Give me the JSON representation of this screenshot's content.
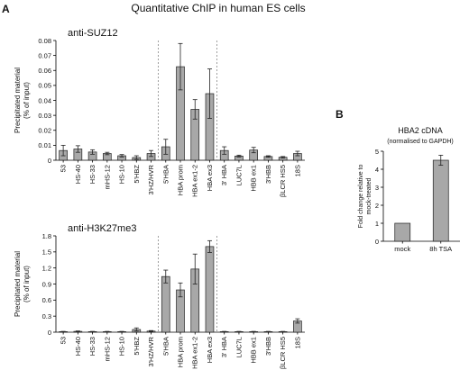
{
  "figure": {
    "title": "Quantitative ChIP in human ES cells",
    "panel_a_label": "A",
    "panel_b_label": "B"
  },
  "chart_data": [
    {
      "type": "bar",
      "title": "anti-SUZ12",
      "ylabel": [
        "Precipitated material",
        "(% of input)"
      ],
      "ylim": [
        0,
        0.08
      ],
      "yticks": [
        "0",
        "0.01",
        "0.02",
        "0.03",
        "0.04",
        "0.05",
        "0.06",
        "0.07",
        "0.08"
      ],
      "categories": [
        "53",
        "HS-40",
        "HS-33",
        "mHS-12",
        "HS-10",
        "5'HBZ",
        "3'HZ/HVR",
        "5'HBA",
        "HBA prom",
        "HBA ex1-2",
        "HBA ex3",
        "3' HBA",
        "LUC7L",
        "HBB ex1",
        "3'HBB",
        "βLCR HS5",
        "18S"
      ],
      "values": [
        0.0065,
        0.0075,
        0.0055,
        0.0045,
        0.003,
        0.0018,
        0.0045,
        0.009,
        0.0625,
        0.034,
        0.0445,
        0.0065,
        0.0028,
        0.0068,
        0.0025,
        0.002,
        0.0045
      ],
      "errors": [
        0.0035,
        0.0022,
        0.0015,
        0.0008,
        0.0008,
        0.0012,
        0.002,
        0.005,
        0.0155,
        0.0065,
        0.0165,
        0.0025,
        0.0006,
        0.0018,
        0.0005,
        0.0005,
        0.0015
      ],
      "grid": false,
      "group_separators_after": [
        6,
        10
      ]
    },
    {
      "type": "bar",
      "title": "anti-H3K27me3",
      "ylabel": [
        "Precipitated material",
        "(% of input)"
      ],
      "ylim": [
        0,
        1.8
      ],
      "yticks": [
        "0",
        "0.3",
        "0.6",
        "0.9",
        "1.2",
        "1.5",
        "1.8"
      ],
      "categories": [
        "53",
        "HS-40",
        "HS-33",
        "mHS-12",
        "HS-10",
        "5'HBZ",
        "3'HZ/HVR",
        "5'HBA",
        "HBA prom",
        "HBA ex1-2",
        "HBA ex3",
        "3' HBA",
        "LUC7L",
        "HBB ex1",
        "3'HBB",
        "βLCR HS5",
        "18S"
      ],
      "values": [
        0.01,
        0.015,
        0.01,
        0.01,
        0.01,
        0.05,
        0.02,
        1.04,
        0.79,
        1.18,
        1.6,
        0.01,
        0.01,
        0.01,
        0.01,
        0.01,
        0.21
      ],
      "errors": [
        0.005,
        0.008,
        0.005,
        0.005,
        0.005,
        0.03,
        0.01,
        0.12,
        0.13,
        0.28,
        0.11,
        0.005,
        0.005,
        0.005,
        0.005,
        0.005,
        0.04
      ],
      "grid": false,
      "group_separators_after": [
        6,
        10
      ]
    },
    {
      "type": "bar",
      "title": "HBA2 cDNA",
      "subtitle": "(normalised to GAPDH)",
      "ylabel": [
        "Fold change relative to",
        "mock-treated"
      ],
      "ylim": [
        0,
        5
      ],
      "yticks": [
        "0",
        "1",
        "2",
        "3",
        "4",
        "5"
      ],
      "categories": [
        "mock",
        "8h TSA"
      ],
      "values": [
        1,
        4.5
      ],
      "errors": [
        0,
        0.28
      ],
      "grid": false
    }
  ]
}
